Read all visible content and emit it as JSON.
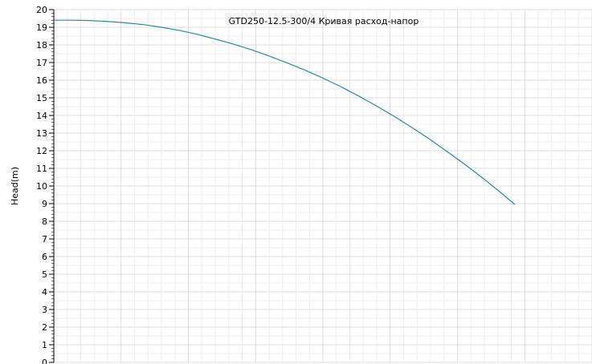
{
  "chart_data": {
    "type": "line",
    "title": "GTD250-12.5-300/4 Кривая расход-напор",
    "xlabel": "",
    "ylabel": "Head(m)",
    "ylim": [
      0,
      20
    ],
    "y_ticks": [
      "0",
      "1",
      "2",
      "3",
      "4",
      "5",
      "6",
      "7",
      "8",
      "9",
      "10",
      "11",
      "12",
      "13",
      "14",
      "15",
      "16",
      "17",
      "18",
      "19",
      "20"
    ],
    "grid": true,
    "series": [
      {
        "color": "#2a8a9c",
        "points": [
          [
            0,
            19.4
          ],
          [
            5,
            19.4
          ],
          [
            10,
            19.38
          ],
          [
            15,
            19.33
          ],
          [
            20,
            19.25
          ],
          [
            25,
            19.15
          ],
          [
            30,
            19.0
          ],
          [
            35,
            18.82
          ],
          [
            40,
            18.6
          ],
          [
            45,
            18.33
          ],
          [
            50,
            18.05
          ],
          [
            55,
            17.73
          ],
          [
            60,
            17.37
          ],
          [
            65,
            16.98
          ],
          [
            70,
            16.57
          ],
          [
            75,
            16.12
          ],
          [
            80,
            15.63
          ],
          [
            85,
            15.1
          ],
          [
            90,
            14.53
          ],
          [
            95,
            13.93
          ],
          [
            100,
            13.29
          ],
          [
            105,
            12.62
          ],
          [
            110,
            11.9
          ],
          [
            115,
            11.16
          ],
          [
            120,
            10.38
          ],
          [
            125,
            9.55
          ],
          [
            128.5,
            8.95
          ]
        ]
      }
    ]
  }
}
